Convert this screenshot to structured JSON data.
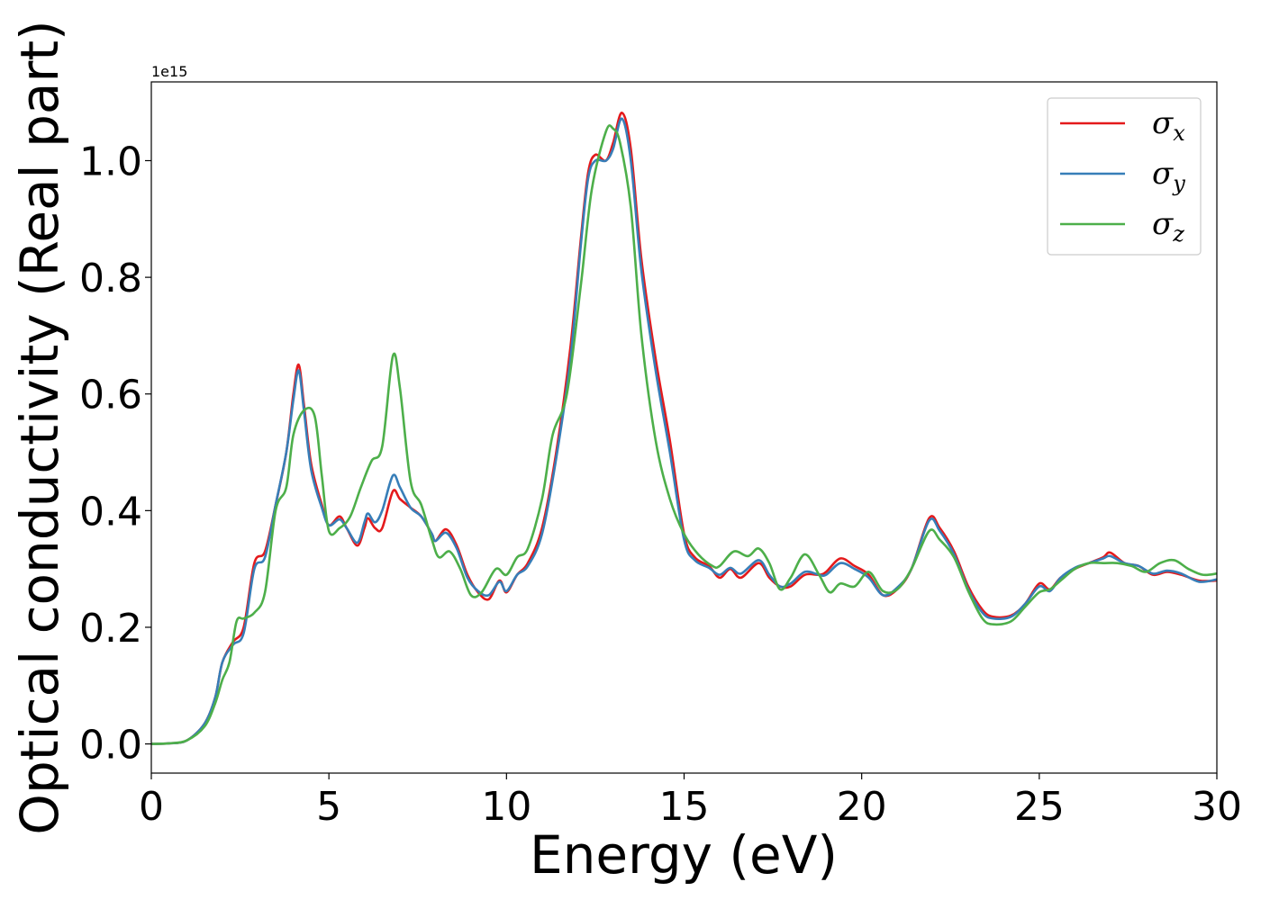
{
  "chart_data": {
    "type": "line",
    "title": "",
    "xlabel": "Energy (eV)",
    "ylabel": "Optical conductivity (Real part)",
    "y_offset_text": "1e15",
    "xlim": [
      0,
      30
    ],
    "ylim": [
      -0.05,
      1.135
    ],
    "xticks": [
      0,
      5,
      10,
      15,
      20,
      25,
      30
    ],
    "xtick_labels": [
      "0",
      "5",
      "10",
      "15",
      "20",
      "25",
      "30"
    ],
    "yticks": [
      0.0,
      0.2,
      0.4,
      0.6,
      0.8,
      1.0
    ],
    "ytick_labels": [
      "0.0",
      "0.2",
      "0.4",
      "0.6",
      "0.8",
      "1.0"
    ],
    "grid": false,
    "legend_position": "top-right",
    "series": [
      {
        "name": "σx",
        "label_main": "σ",
        "label_sub": "x",
        "color": "#e41a1c",
        "points": [
          [
            0,
            0
          ],
          [
            0.5,
            0.001
          ],
          [
            1.0,
            0.006
          ],
          [
            1.5,
            0.035
          ],
          [
            1.8,
            0.08
          ],
          [
            2.0,
            0.14
          ],
          [
            2.3,
            0.175
          ],
          [
            2.6,
            0.2
          ],
          [
            2.9,
            0.31
          ],
          [
            3.2,
            0.33
          ],
          [
            3.5,
            0.41
          ],
          [
            3.8,
            0.5
          ],
          [
            4.0,
            0.6
          ],
          [
            4.15,
            0.65
          ],
          [
            4.3,
            0.58
          ],
          [
            4.5,
            0.48
          ],
          [
            4.8,
            0.41
          ],
          [
            5.0,
            0.375
          ],
          [
            5.3,
            0.39
          ],
          [
            5.5,
            0.37
          ],
          [
            5.8,
            0.34
          ],
          [
            6.0,
            0.37
          ],
          [
            6.1,
            0.387
          ],
          [
            6.3,
            0.37
          ],
          [
            6.5,
            0.37
          ],
          [
            6.8,
            0.433
          ],
          [
            7.0,
            0.42
          ],
          [
            7.3,
            0.405
          ],
          [
            7.6,
            0.39
          ],
          [
            7.9,
            0.36
          ],
          [
            8.0,
            0.348
          ],
          [
            8.3,
            0.368
          ],
          [
            8.6,
            0.34
          ],
          [
            8.9,
            0.29
          ],
          [
            9.2,
            0.26
          ],
          [
            9.5,
            0.248
          ],
          [
            9.8,
            0.28
          ],
          [
            10.0,
            0.26
          ],
          [
            10.3,
            0.29
          ],
          [
            10.6,
            0.31
          ],
          [
            11.0,
            0.37
          ],
          [
            11.4,
            0.5
          ],
          [
            11.8,
            0.68
          ],
          [
            12.1,
            0.87
          ],
          [
            12.3,
            0.98
          ],
          [
            12.5,
            1.01
          ],
          [
            12.8,
            1.0
          ],
          [
            13.0,
            1.03
          ],
          [
            13.25,
            1.082
          ],
          [
            13.5,
            1.02
          ],
          [
            13.8,
            0.83
          ],
          [
            14.2,
            0.66
          ],
          [
            14.6,
            0.52
          ],
          [
            15.0,
            0.36
          ],
          [
            15.3,
            0.32
          ],
          [
            15.7,
            0.305
          ],
          [
            16.0,
            0.285
          ],
          [
            16.3,
            0.3
          ],
          [
            16.6,
            0.285
          ],
          [
            17.1,
            0.31
          ],
          [
            17.4,
            0.285
          ],
          [
            17.7,
            0.27
          ],
          [
            18.0,
            0.27
          ],
          [
            18.4,
            0.29
          ],
          [
            18.8,
            0.29
          ],
          [
            19.0,
            0.295
          ],
          [
            19.4,
            0.318
          ],
          [
            19.8,
            0.305
          ],
          [
            20.2,
            0.29
          ],
          [
            20.6,
            0.255
          ],
          [
            21.0,
            0.265
          ],
          [
            21.4,
            0.3
          ],
          [
            21.9,
            0.387
          ],
          [
            22.2,
            0.37
          ],
          [
            22.6,
            0.33
          ],
          [
            23.0,
            0.27
          ],
          [
            23.4,
            0.23
          ],
          [
            23.7,
            0.218
          ],
          [
            24.2,
            0.22
          ],
          [
            24.6,
            0.24
          ],
          [
            25.0,
            0.275
          ],
          [
            25.3,
            0.265
          ],
          [
            25.6,
            0.285
          ],
          [
            26.0,
            0.3
          ],
          [
            26.4,
            0.31
          ],
          [
            26.8,
            0.32
          ],
          [
            27.0,
            0.328
          ],
          [
            27.4,
            0.31
          ],
          [
            27.8,
            0.305
          ],
          [
            28.2,
            0.29
          ],
          [
            28.6,
            0.295
          ],
          [
            29.0,
            0.29
          ],
          [
            29.5,
            0.28
          ],
          [
            30.0,
            0.28
          ]
        ]
      },
      {
        "name": "σy",
        "label_main": "σ",
        "label_sub": "y",
        "color": "#377eb8",
        "points": [
          [
            0,
            0
          ],
          [
            0.5,
            0.001
          ],
          [
            1.0,
            0.006
          ],
          [
            1.5,
            0.035
          ],
          [
            1.8,
            0.08
          ],
          [
            2.0,
            0.14
          ],
          [
            2.3,
            0.17
          ],
          [
            2.6,
            0.19
          ],
          [
            2.9,
            0.3
          ],
          [
            3.2,
            0.32
          ],
          [
            3.5,
            0.41
          ],
          [
            3.8,
            0.5
          ],
          [
            4.0,
            0.59
          ],
          [
            4.15,
            0.64
          ],
          [
            4.3,
            0.57
          ],
          [
            4.5,
            0.47
          ],
          [
            4.8,
            0.405
          ],
          [
            5.0,
            0.375
          ],
          [
            5.3,
            0.385
          ],
          [
            5.5,
            0.37
          ],
          [
            5.8,
            0.345
          ],
          [
            6.0,
            0.38
          ],
          [
            6.1,
            0.395
          ],
          [
            6.3,
            0.38
          ],
          [
            6.5,
            0.4
          ],
          [
            6.8,
            0.46
          ],
          [
            7.0,
            0.44
          ],
          [
            7.3,
            0.405
          ],
          [
            7.6,
            0.39
          ],
          [
            7.9,
            0.36
          ],
          [
            8.0,
            0.348
          ],
          [
            8.3,
            0.362
          ],
          [
            8.6,
            0.335
          ],
          [
            8.9,
            0.285
          ],
          [
            9.2,
            0.262
          ],
          [
            9.5,
            0.255
          ],
          [
            9.8,
            0.278
          ],
          [
            10.0,
            0.262
          ],
          [
            10.3,
            0.29
          ],
          [
            10.6,
            0.305
          ],
          [
            11.0,
            0.36
          ],
          [
            11.4,
            0.49
          ],
          [
            11.8,
            0.66
          ],
          [
            12.1,
            0.86
          ],
          [
            12.3,
            0.97
          ],
          [
            12.5,
            1.0
          ],
          [
            12.8,
            1.0
          ],
          [
            13.0,
            1.02
          ],
          [
            13.25,
            1.072
          ],
          [
            13.5,
            1.0
          ],
          [
            13.8,
            0.81
          ],
          [
            14.2,
            0.64
          ],
          [
            14.6,
            0.5
          ],
          [
            15.0,
            0.35
          ],
          [
            15.3,
            0.315
          ],
          [
            15.7,
            0.302
          ],
          [
            16.0,
            0.29
          ],
          [
            16.3,
            0.302
          ],
          [
            16.6,
            0.292
          ],
          [
            17.1,
            0.315
          ],
          [
            17.4,
            0.29
          ],
          [
            17.7,
            0.27
          ],
          [
            18.0,
            0.275
          ],
          [
            18.4,
            0.295
          ],
          [
            18.8,
            0.29
          ],
          [
            19.0,
            0.29
          ],
          [
            19.4,
            0.31
          ],
          [
            19.8,
            0.3
          ],
          [
            20.2,
            0.285
          ],
          [
            20.6,
            0.255
          ],
          [
            21.0,
            0.268
          ],
          [
            21.4,
            0.3
          ],
          [
            21.9,
            0.383
          ],
          [
            22.2,
            0.365
          ],
          [
            22.6,
            0.325
          ],
          [
            23.0,
            0.265
          ],
          [
            23.4,
            0.225
          ],
          [
            23.7,
            0.215
          ],
          [
            24.2,
            0.218
          ],
          [
            24.6,
            0.24
          ],
          [
            25.0,
            0.27
          ],
          [
            25.3,
            0.262
          ],
          [
            25.6,
            0.285
          ],
          [
            26.0,
            0.302
          ],
          [
            26.4,
            0.31
          ],
          [
            26.8,
            0.318
          ],
          [
            27.0,
            0.322
          ],
          [
            27.4,
            0.31
          ],
          [
            27.8,
            0.305
          ],
          [
            28.2,
            0.292
          ],
          [
            28.6,
            0.297
          ],
          [
            29.0,
            0.292
          ],
          [
            29.5,
            0.278
          ],
          [
            30.0,
            0.282
          ]
        ]
      },
      {
        "name": "σz",
        "label_main": "σ",
        "label_sub": "z",
        "color": "#4daf4a",
        "points": [
          [
            0,
            0
          ],
          [
            0.5,
            0.001
          ],
          [
            1.0,
            0.006
          ],
          [
            1.5,
            0.03
          ],
          [
            1.8,
            0.07
          ],
          [
            2.0,
            0.11
          ],
          [
            2.2,
            0.14
          ],
          [
            2.4,
            0.21
          ],
          [
            2.6,
            0.215
          ],
          [
            2.9,
            0.225
          ],
          [
            3.2,
            0.26
          ],
          [
            3.5,
            0.4
          ],
          [
            3.8,
            0.44
          ],
          [
            4.0,
            0.53
          ],
          [
            4.3,
            0.572
          ],
          [
            4.6,
            0.562
          ],
          [
            4.8,
            0.46
          ],
          [
            5.0,
            0.365
          ],
          [
            5.3,
            0.37
          ],
          [
            5.6,
            0.39
          ],
          [
            5.9,
            0.44
          ],
          [
            6.2,
            0.485
          ],
          [
            6.5,
            0.51
          ],
          [
            6.8,
            0.665
          ],
          [
            7.0,
            0.61
          ],
          [
            7.3,
            0.45
          ],
          [
            7.6,
            0.41
          ],
          [
            7.9,
            0.35
          ],
          [
            8.1,
            0.32
          ],
          [
            8.4,
            0.33
          ],
          [
            8.7,
            0.3
          ],
          [
            9.0,
            0.255
          ],
          [
            9.3,
            0.26
          ],
          [
            9.7,
            0.3
          ],
          [
            10.0,
            0.29
          ],
          [
            10.3,
            0.32
          ],
          [
            10.6,
            0.335
          ],
          [
            11.0,
            0.42
          ],
          [
            11.3,
            0.53
          ],
          [
            11.7,
            0.6
          ],
          [
            12.1,
            0.79
          ],
          [
            12.4,
            0.95
          ],
          [
            12.8,
            1.05
          ],
          [
            13.0,
            1.055
          ],
          [
            13.2,
            1.03
          ],
          [
            13.5,
            0.92
          ],
          [
            13.8,
            0.7
          ],
          [
            14.2,
            0.52
          ],
          [
            14.6,
            0.42
          ],
          [
            15.0,
            0.36
          ],
          [
            15.4,
            0.325
          ],
          [
            15.8,
            0.305
          ],
          [
            16.0,
            0.305
          ],
          [
            16.4,
            0.33
          ],
          [
            16.8,
            0.322
          ],
          [
            17.1,
            0.335
          ],
          [
            17.4,
            0.31
          ],
          [
            17.7,
            0.265
          ],
          [
            18.0,
            0.285
          ],
          [
            18.4,
            0.325
          ],
          [
            18.8,
            0.29
          ],
          [
            19.1,
            0.26
          ],
          [
            19.4,
            0.275
          ],
          [
            19.8,
            0.27
          ],
          [
            20.2,
            0.295
          ],
          [
            20.6,
            0.262
          ],
          [
            21.0,
            0.265
          ],
          [
            21.4,
            0.3
          ],
          [
            21.9,
            0.365
          ],
          [
            22.2,
            0.35
          ],
          [
            22.6,
            0.32
          ],
          [
            23.0,
            0.262
          ],
          [
            23.4,
            0.215
          ],
          [
            23.7,
            0.205
          ],
          [
            24.2,
            0.21
          ],
          [
            24.6,
            0.235
          ],
          [
            25.0,
            0.26
          ],
          [
            25.3,
            0.265
          ],
          [
            25.6,
            0.28
          ],
          [
            26.0,
            0.3
          ],
          [
            26.4,
            0.31
          ],
          [
            26.8,
            0.31
          ],
          [
            27.2,
            0.31
          ],
          [
            27.6,
            0.305
          ],
          [
            28.0,
            0.295
          ],
          [
            28.4,
            0.31
          ],
          [
            28.8,
            0.315
          ],
          [
            29.2,
            0.3
          ],
          [
            29.6,
            0.29
          ],
          [
            30.0,
            0.292
          ]
        ]
      }
    ]
  }
}
